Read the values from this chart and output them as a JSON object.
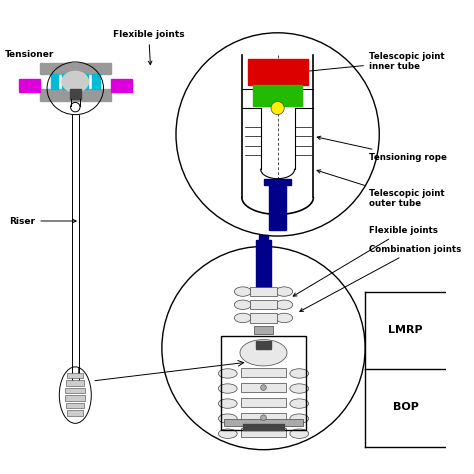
{
  "bg_color": "#ffffff",
  "labels": {
    "tensioner": "Tensioner",
    "flexible_joints_top": "Flexible joints",
    "riser": "Riser",
    "telescopic_inner": "Telescopic joint\ninner tube",
    "tensioning_rope": "Tensioning rope",
    "telescopic_outer": "Telescopic joint\nouter tube",
    "flexible_joints_mid": "Flexible joints",
    "combination_joints": "Combination joints",
    "LMRP": "LMRP",
    "BOP": "BOP"
  },
  "colors": {
    "red_block": "#dd0000",
    "green_block": "#22bb00",
    "yellow_dot": "#ffee00",
    "blue_tube": "#00008b",
    "cyan_tube": "#00bcd4",
    "magenta_block": "#dd00dd",
    "gray_plate": "#999999",
    "dark_gray": "#444444",
    "mid_gray": "#aaaaaa",
    "black": "#000000",
    "white": "#ffffff",
    "light_gray": "#cccccc",
    "very_light_gray": "#e8e8e8"
  }
}
